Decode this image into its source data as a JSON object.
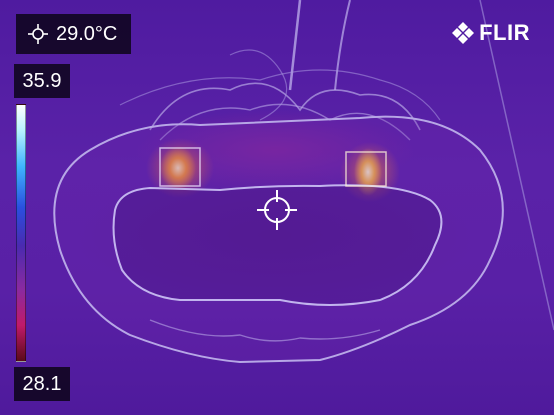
{
  "spot": {
    "value": "29.0°C",
    "icon": "crosshair-icon"
  },
  "scale": {
    "max": "35.9",
    "min": "28.1",
    "palette": "iron"
  },
  "brand": {
    "name": "FLIR",
    "icon": "flir-logo-icon"
  },
  "center_marker": {
    "icon": "spot-meter-reticle-icon"
  },
  "colors": {
    "background": "#5a22a8",
    "hot_spot": "#ffd060",
    "outline": "#b7a7e6"
  }
}
